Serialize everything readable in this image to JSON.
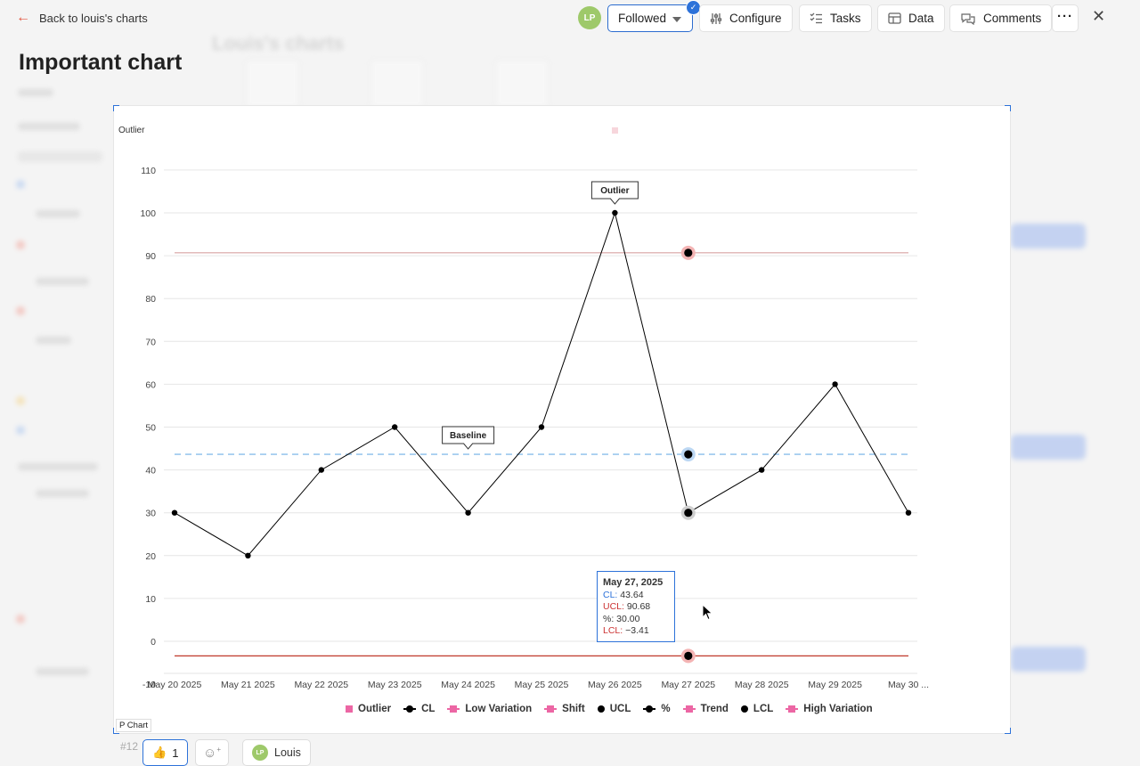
{
  "header": {
    "back_label": "Back to louis's charts",
    "avatar_initials": "LP",
    "followed_label": "Followed",
    "buttons": {
      "configure": "Configure",
      "tasks": "Tasks",
      "data": "Data",
      "comments": "Comments"
    },
    "more_icon": "ellipsis-icon",
    "close_icon": "close-icon"
  },
  "page": {
    "title": "Important chart",
    "background_title": "Louis's charts"
  },
  "chart_panel": {
    "caption": "Outlier",
    "chart_type_label": "P Chart"
  },
  "chart_data": {
    "type": "line",
    "ylim": [
      -4,
      114
    ],
    "yticks": [
      110,
      100,
      90,
      80,
      70,
      60,
      50,
      40,
      30,
      20,
      10,
      0
    ],
    "categories": [
      "May 20 2025",
      "May 21 2025",
      "May 22 2025",
      "May 23 2025",
      "May 24 2025",
      "May 25 2025",
      "May 26 2025",
      "May 27 2025",
      "May 28 2025",
      "May 29 2025",
      "May 30 ..."
    ],
    "series": [
      {
        "name": "%",
        "values": [
          30,
          20,
          40,
          50,
          30,
          50,
          100,
          30,
          40,
          60,
          30
        ],
        "color": "#000000"
      }
    ],
    "control_lines": {
      "UCL": {
        "value": 90.68,
        "color": "#cc3333"
      },
      "CL": {
        "value": 43.64,
        "color": "#5aa0e0"
      },
      "LCL": {
        "value": -3.41,
        "color": "#cc3333"
      }
    },
    "annotations": [
      {
        "label": "Outlier",
        "category_index": 6
      },
      {
        "label": "Baseline",
        "category_index": 4
      }
    ],
    "highlight_index": 7,
    "legend": [
      {
        "label": "Outlier",
        "marker": "square",
        "color": "#ec66a4"
      },
      {
        "label": "CL",
        "marker": "line-dot",
        "color": "#000000"
      },
      {
        "label": "Low Variation",
        "marker": "line-square",
        "color": "#ec66a4"
      },
      {
        "label": "Shift",
        "marker": "line-square",
        "color": "#ec66a4"
      },
      {
        "label": "UCL",
        "marker": "dot",
        "color": "#000000"
      },
      {
        "label": "%",
        "marker": "line-dot",
        "color": "#000000"
      },
      {
        "label": "Trend",
        "marker": "line-square",
        "color": "#ec66a4"
      },
      {
        "label": "LCL",
        "marker": "dot",
        "color": "#000000"
      },
      {
        "label": "High Variation",
        "marker": "line-square",
        "color": "#ec66a4"
      }
    ],
    "legend_position": "bottom"
  },
  "tooltip": {
    "date": "May 27, 2025",
    "rows": [
      {
        "key": "CL",
        "value": "43.64",
        "color": "#2d72d9"
      },
      {
        "key": "UCL",
        "value": "90.68",
        "color": "#cc3333"
      },
      {
        "key": "%",
        "value": "30.00",
        "color": "#333333"
      },
      {
        "key": "LCL",
        "value": "−3.41",
        "color": "#cc3333"
      }
    ]
  },
  "footer": {
    "issue_id": "#12",
    "reaction_emoji": "👍",
    "reaction_count": "1",
    "add_reaction_icon": "smiley-plus-icon",
    "user_initials": "LP",
    "user_name": "Louis"
  },
  "colors": {
    "accent": "#2d72d9",
    "avatar": "#9ec96a",
    "danger": "#cc3333",
    "pink": "#ec66a4"
  }
}
